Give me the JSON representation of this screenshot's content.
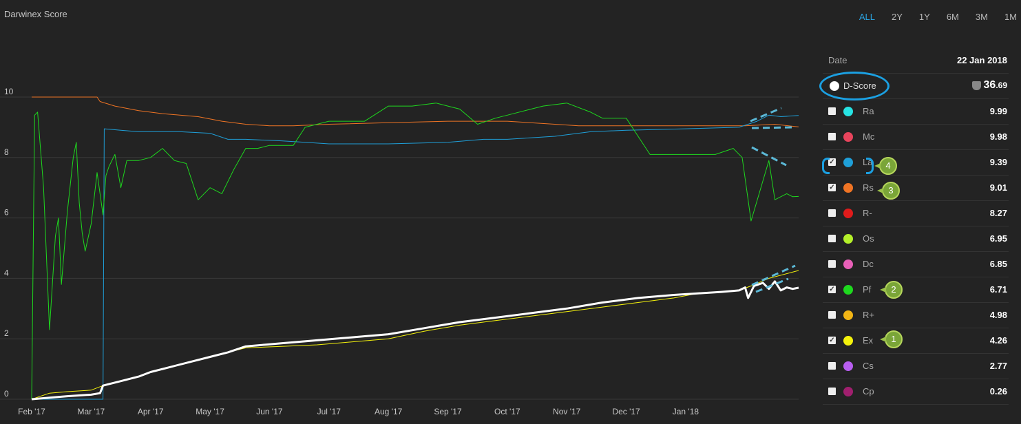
{
  "title": "Darwinex Score",
  "ranges": [
    {
      "label": "ALL",
      "active": true
    },
    {
      "label": "2Y",
      "active": false
    },
    {
      "label": "1Y",
      "active": false
    },
    {
      "label": "6M",
      "active": false
    },
    {
      "label": "3M",
      "active": false
    },
    {
      "label": "1M",
      "active": false
    }
  ],
  "panel": {
    "date_label": "Date",
    "date_value": "22 Jan 2018",
    "dscore_label": "D-Score",
    "dscore_int": "36",
    "dscore_dec": ".69",
    "items": [
      {
        "label": "Ra",
        "value": "9.99",
        "color": "#27e3e3",
        "checked": false
      },
      {
        "label": "Mc",
        "value": "9.98",
        "color": "#e8445c",
        "checked": false
      },
      {
        "label": "La",
        "value": "9.39",
        "color": "#1f9fd8",
        "checked": true
      },
      {
        "label": "Rs",
        "value": "9.01",
        "color": "#ef7424",
        "checked": true
      },
      {
        "label": "R-",
        "value": "8.27",
        "color": "#e01b1b",
        "checked": false
      },
      {
        "label": "Os",
        "value": "6.95",
        "color": "#b4f02a",
        "checked": false
      },
      {
        "label": "Dc",
        "value": "6.85",
        "color": "#e860b8",
        "checked": false
      },
      {
        "label": "Pf",
        "value": "6.71",
        "color": "#1ed81e",
        "checked": true
      },
      {
        "label": "R+",
        "value": "4.98",
        "color": "#f2b515",
        "checked": false
      },
      {
        "label": "Ex",
        "value": "4.26",
        "color": "#f4f20c",
        "checked": true
      },
      {
        "label": "Cs",
        "value": "2.77",
        "color": "#b85ef0",
        "checked": false
      },
      {
        "label": "Cp",
        "value": "0.26",
        "color": "#a01f6e",
        "checked": false
      }
    ]
  },
  "badges": [
    "1",
    "2",
    "3",
    "4"
  ],
  "chart_data": {
    "type": "line",
    "ylim": [
      0,
      10.5
    ],
    "yticks": [
      "0",
      "2",
      "4",
      "6",
      "8",
      "10"
    ],
    "xticks": [
      "Feb '17",
      "Mar '17",
      "Apr '17",
      "May '17",
      "Jun '17",
      "Jul '17",
      "Aug '17",
      "Sep '17",
      "Oct '17",
      "Nov '17",
      "Dec '17",
      "Jan '18"
    ],
    "xrange": [
      0,
      12.9
    ],
    "series": [
      {
        "key": "Rs",
        "color": "#ef7424",
        "width": 1,
        "x": [
          0,
          1.1,
          1.15,
          1.4,
          1.8,
          2.2,
          2.8,
          3.2,
          3.6,
          4.0,
          4.4,
          5.0,
          6.0,
          7.0,
          7.6,
          8.0,
          8.8,
          9.2,
          10.0,
          11.0,
          12.0,
          12.5,
          12.9
        ],
        "y": [
          10,
          10,
          9.85,
          9.7,
          9.55,
          9.45,
          9.35,
          9.2,
          9.1,
          9.05,
          9.05,
          9.1,
          9.15,
          9.2,
          9.2,
          9.2,
          9.1,
          9.05,
          9.05,
          9.05,
          9.05,
          9.1,
          9.01
        ]
      },
      {
        "key": "La",
        "color": "#1f9fd8",
        "width": 1,
        "x": [
          0,
          1.2,
          1.22,
          1.5,
          1.8,
          2.5,
          3.0,
          3.3,
          3.6,
          4.2,
          4.6,
          5.0,
          6.0,
          7.0,
          7.6,
          8.0,
          8.8,
          9.4,
          10.0,
          11.0,
          11.9,
          12.2,
          12.4,
          12.6,
          12.9
        ],
        "y": [
          0,
          0,
          8.95,
          8.9,
          8.85,
          8.85,
          8.8,
          8.6,
          8.6,
          8.55,
          8.5,
          8.45,
          8.45,
          8.5,
          8.6,
          8.6,
          8.7,
          8.85,
          8.9,
          8.95,
          9.0,
          9.2,
          9.4,
          9.35,
          9.39
        ]
      },
      {
        "key": "Pf",
        "color": "#1ed81e",
        "width": 1,
        "x": [
          0,
          0.05,
          0.1,
          0.2,
          0.3,
          0.4,
          0.45,
          0.5,
          0.6,
          0.7,
          0.75,
          0.8,
          0.85,
          0.9,
          1.0,
          1.1,
          1.2,
          1.25,
          1.3,
          1.4,
          1.5,
          1.6,
          1.8,
          2.0,
          2.2,
          2.4,
          2.6,
          2.8,
          3.0,
          3.2,
          3.4,
          3.6,
          3.8,
          4.0,
          4.4,
          4.6,
          5.0,
          5.2,
          5.6,
          6.0,
          6.4,
          6.8,
          7.0,
          7.2,
          7.5,
          7.8,
          8.0,
          8.4,
          8.6,
          9.0,
          9.4,
          9.6,
          10.0,
          10.4,
          10.6,
          11.0,
          11.5,
          11.8,
          11.95,
          12.1,
          12.25,
          12.4,
          12.5,
          12.7,
          12.8,
          12.9
        ],
        "y": [
          0,
          9.4,
          9.5,
          7.0,
          2.3,
          5.4,
          6.0,
          3.8,
          6.2,
          8.0,
          8.5,
          6.5,
          5.5,
          4.9,
          5.8,
          7.5,
          6.1,
          7.4,
          7.7,
          8.1,
          7.0,
          7.9,
          7.9,
          8.0,
          8.3,
          7.9,
          7.8,
          6.6,
          7.0,
          6.8,
          7.6,
          8.3,
          8.3,
          8.4,
          8.4,
          9.0,
          9.2,
          9.2,
          9.2,
          9.7,
          9.7,
          9.8,
          9.7,
          9.6,
          9.1,
          9.3,
          9.4,
          9.6,
          9.7,
          9.8,
          9.5,
          9.3,
          9.3,
          8.1,
          8.1,
          8.1,
          8.1,
          8.3,
          8.0,
          5.9,
          6.9,
          7.9,
          6.6,
          6.8,
          6.7,
          6.71
        ]
      },
      {
        "key": "Ex",
        "color": "#f4f20c",
        "width": 1,
        "x": [
          0,
          0.3,
          0.6,
          1.0,
          1.2,
          1.5,
          1.8,
          2.0,
          2.3,
          2.7,
          3.0,
          3.3,
          3.6,
          4.2,
          4.8,
          5.4,
          6.0,
          6.6,
          7.2,
          7.8,
          8.4,
          9.0,
          9.6,
          10.2,
          10.8,
          11.2,
          11.6,
          11.9,
          12.1,
          12.4,
          12.9
        ],
        "y": [
          0,
          0.2,
          0.25,
          0.3,
          0.45,
          0.6,
          0.75,
          0.9,
          1.05,
          1.25,
          1.4,
          1.55,
          1.7,
          1.75,
          1.8,
          1.9,
          2.0,
          2.25,
          2.45,
          2.6,
          2.75,
          2.9,
          3.05,
          3.2,
          3.35,
          3.5,
          3.55,
          3.6,
          3.75,
          4.0,
          4.26
        ]
      },
      {
        "key": "D-Score",
        "color": "#ffffff",
        "width": 3,
        "x": [
          0,
          0.3,
          0.6,
          1.0,
          1.15,
          1.2,
          1.5,
          1.8,
          2.0,
          2.3,
          2.7,
          3.0,
          3.3,
          3.6,
          4.2,
          4.8,
          5.4,
          6.0,
          6.6,
          7.2,
          7.8,
          8.4,
          9.0,
          9.6,
          10.2,
          10.8,
          11.2,
          11.6,
          11.9,
          12.0,
          12.05,
          12.15,
          12.3,
          12.4,
          12.5,
          12.6,
          12.7,
          12.8,
          12.9
        ],
        "y": [
          0,
          0.05,
          0.1,
          0.15,
          0.2,
          0.45,
          0.6,
          0.75,
          0.9,
          1.05,
          1.25,
          1.4,
          1.55,
          1.75,
          1.85,
          1.95,
          2.05,
          2.15,
          2.35,
          2.55,
          2.7,
          2.85,
          3.0,
          3.2,
          3.35,
          3.45,
          3.5,
          3.55,
          3.6,
          3.7,
          3.35,
          3.75,
          3.85,
          3.65,
          3.9,
          3.6,
          3.7,
          3.65,
          3.69
        ]
      }
    ]
  }
}
